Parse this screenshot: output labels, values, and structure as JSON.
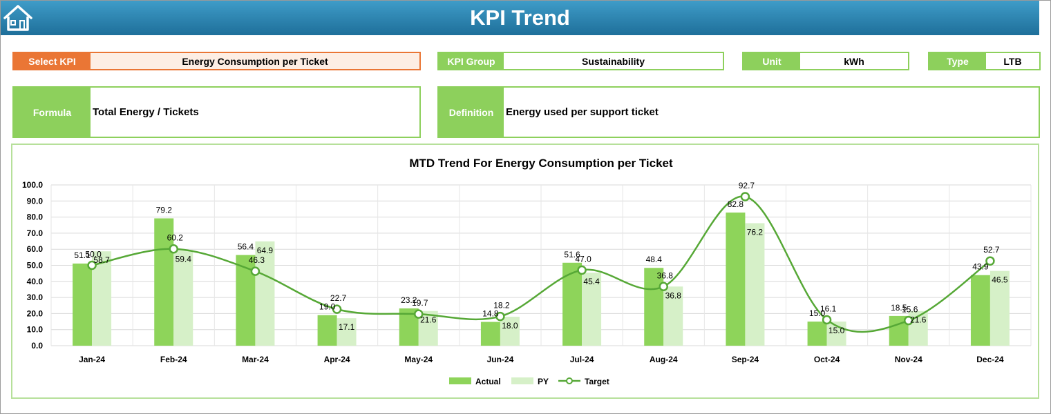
{
  "header": {
    "title": "KPI Trend"
  },
  "fields": {
    "select_kpi": {
      "label": "Select KPI",
      "value": "Energy Consumption per Ticket"
    },
    "kpi_group": {
      "label": "KPI Group",
      "value": "Sustainability"
    },
    "unit": {
      "label": "Unit",
      "value": "kWh"
    },
    "type": {
      "label": "Type",
      "value": "LTB"
    },
    "formula": {
      "label": "Formula",
      "value": "Total Energy / Tickets"
    },
    "definition": {
      "label": "Definition",
      "value": "Energy used per support ticket"
    }
  },
  "colors": {
    "header": "#2a86b4",
    "accent": "#8dd05c",
    "orange": "#ea7635",
    "actual": "#8ed45a",
    "py": "#d6f0c8",
    "target": "#56a836"
  },
  "chart_data": {
    "type": "bar",
    "title": "MTD Trend For Energy Consumption per Ticket",
    "categories": [
      "Jan-24",
      "Feb-24",
      "Mar-24",
      "Apr-24",
      "May-24",
      "Jun-24",
      "Jul-24",
      "Aug-24",
      "Sep-24",
      "Oct-24",
      "Nov-24",
      "Dec-24"
    ],
    "series": [
      {
        "name": "Actual",
        "type": "bar",
        "values": [
          51.1,
          79.2,
          56.4,
          19.0,
          23.2,
          14.8,
          51.6,
          48.4,
          82.8,
          15.0,
          18.5,
          43.9
        ]
      },
      {
        "name": "PY",
        "type": "bar",
        "values": [
          58.7,
          59.4,
          64.9,
          17.1,
          21.6,
          18.0,
          45.4,
          36.8,
          76.2,
          15.0,
          21.6,
          46.5
        ]
      },
      {
        "name": "Target",
        "type": "line",
        "values": [
          50.0,
          60.2,
          46.3,
          22.7,
          19.7,
          18.2,
          47.0,
          36.8,
          92.7,
          16.1,
          15.6,
          52.7
        ]
      }
    ],
    "ylim": [
      0,
      100
    ],
    "yticks": [
      "0.0",
      "10.0",
      "20.0",
      "30.0",
      "40.0",
      "50.0",
      "60.0",
      "70.0",
      "80.0",
      "90.0",
      "100.0"
    ],
    "grid": true,
    "legend_position": "bottom"
  }
}
